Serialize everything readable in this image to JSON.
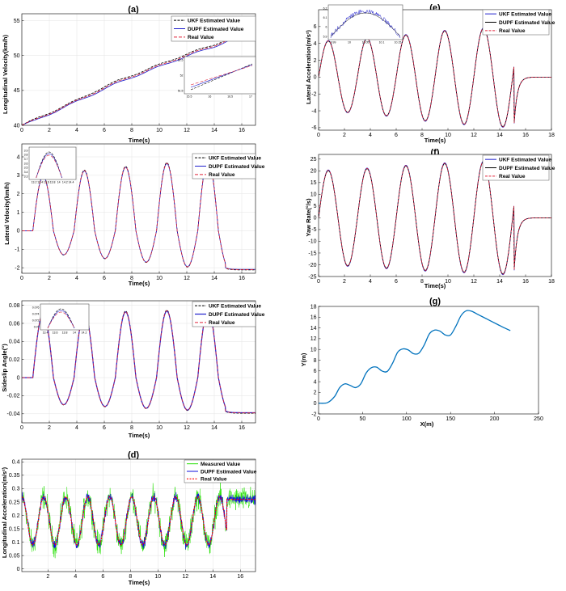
{
  "chart_data": [
    {
      "id": "a",
      "panel_label": "(a)",
      "type": "line",
      "xlabel": "Time(s)",
      "ylabel": "Longitudinal Velocity(km/h)",
      "xlim": [
        0,
        17
      ],
      "ylim": [
        40,
        56
      ],
      "xticks": [
        0,
        2,
        4,
        6,
        8,
        10,
        12,
        14,
        16
      ],
      "yticks": [
        40,
        45,
        50,
        55
      ],
      "legend_position": "top-right",
      "grid": true,
      "series": [
        {
          "name": "UKF Estimated Value",
          "color": "#000000",
          "dash": "3,1.5",
          "width": 0.8,
          "x": [
            0,
            1,
            2,
            3,
            4,
            5,
            6,
            7,
            8,
            9,
            10,
            11,
            12,
            13,
            14,
            15,
            16,
            17
          ],
          "y": [
            40.0,
            40.9,
            41.8,
            42.7,
            43.6,
            44.6,
            45.5,
            46.4,
            47.2,
            47.9,
            48.7,
            49.5,
            50.2,
            50.9,
            51.6,
            52.4,
            53.2,
            54.0
          ]
        },
        {
          "name": "DUPF Estimated Value",
          "color": "#1f1fcc",
          "dash": "",
          "width": 0.8,
          "x": [
            0,
            1,
            2,
            3,
            4,
            5,
            6,
            7,
            8,
            9,
            10,
            11,
            12,
            13,
            14,
            15,
            16,
            17
          ],
          "y": [
            40.0,
            40.7,
            41.6,
            42.5,
            43.4,
            44.3,
            45.2,
            46.1,
            46.9,
            47.6,
            48.4,
            49.2,
            49.9,
            50.6,
            51.3,
            52.1,
            52.9,
            53.7
          ]
        },
        {
          "name": "Real Value",
          "color": "#e0243a",
          "dash": "4,2",
          "width": 0.8,
          "x": [
            0,
            1,
            2,
            3,
            4,
            5,
            6,
            7,
            8,
            9,
            10,
            11,
            12,
            13,
            14,
            15,
            16,
            17
          ],
          "y": [
            40.0,
            40.8,
            41.7,
            42.6,
            43.5,
            44.45,
            45.35,
            46.25,
            47.05,
            47.75,
            48.55,
            49.35,
            50.05,
            50.75,
            51.45,
            52.25,
            53.05,
            53.85
          ]
        }
      ],
      "inset": {
        "xticks": [
          "15.5",
          "16",
          "16.5",
          "17"
        ],
        "yticks": [
          "52.5",
          "52",
          "51.5"
        ]
      }
    },
    {
      "id": "b",
      "panel_label": "(b)",
      "type": "line",
      "xlabel": "Time(s)",
      "ylabel": "Lateral Velocity(km/h)",
      "xlim": [
        0,
        17
      ],
      "ylim": [
        -2.3,
        4.7
      ],
      "xticks": [
        0,
        2,
        4,
        6,
        8,
        10,
        12,
        14,
        16
      ],
      "yticks": [
        -2,
        -1,
        0,
        1,
        2,
        3,
        4
      ],
      "legend_position": "top-right",
      "grid": true,
      "signal": {
        "kind": "sine",
        "t_start": 0.8,
        "t_end": 14.8,
        "period": 3.0,
        "peaks": [
          2.95,
          3.25,
          3.45,
          3.65,
          3.85
        ],
        "troughs": [
          -1.3,
          -1.5,
          -1.7,
          -1.95,
          -2.0
        ],
        "final_value": -2.1
      },
      "series": [
        {
          "name": "UKF Estimated Value",
          "color": "#000000",
          "dash": "3,1.5",
          "width": 0.8
        },
        {
          "name": "DUPF Estimated Value",
          "color": "#1f1fcc",
          "dash": "",
          "width": 0.8
        },
        {
          "name": "Real Value",
          "color": "#e0243a",
          "dash": "4,2",
          "width": 0.8
        }
      ],
      "inset": {
        "xticks": [
          "13.2",
          "13.4",
          "13.6",
          "13.8",
          "14",
          "14.2",
          "14.4"
        ],
        "yticks": [
          "3.9",
          "3.8",
          "3.7",
          "3.6",
          "3.5",
          "3.4",
          "3.3"
        ]
      }
    },
    {
      "id": "c",
      "panel_label": "(c)",
      "type": "line",
      "xlabel": "Time(s)",
      "ylabel": "Sideslip Angle(°)",
      "xlim": [
        0,
        17
      ],
      "ylim": [
        -0.05,
        0.085
      ],
      "xticks": [
        0,
        2,
        4,
        6,
        8,
        10,
        12,
        14,
        16
      ],
      "yticks": [
        -0.04,
        -0.02,
        0,
        0.02,
        0.04,
        0.06,
        0.08
      ],
      "legend_position": "top-right",
      "grid": true,
      "signal": {
        "kind": "sine",
        "t_start": 0.8,
        "t_end": 14.8,
        "period": 3.0,
        "peaks": [
          0.071,
          0.072,
          0.073,
          0.074,
          0.075
        ],
        "troughs": [
          -0.03,
          -0.032,
          -0.034,
          -0.036,
          -0.037
        ],
        "final_value": -0.039
      },
      "series": [
        {
          "name": "UKF Estimated Value",
          "color": "#000000",
          "dash": "3,1.5",
          "width": 0.8
        },
        {
          "name": "DUPF Estimated Value",
          "color": "#1f1fcc",
          "dash": "",
          "width": 1.2
        },
        {
          "name": "Real Value",
          "color": "#e0243a",
          "dash": "4,2",
          "width": 0.8
        }
      ],
      "inset": {
        "xticks": [
          "13.4",
          "13.6",
          "13.8",
          "14",
          "14.2"
        ],
        "yticks": [
          "0.076",
          "0.074",
          "0.072",
          "0.07"
        ]
      }
    },
    {
      "id": "d",
      "panel_label": "(d)",
      "type": "line",
      "xlabel": "Time(s)",
      "ylabel": "Longitudinal Acceleration(m/s²)",
      "xlim": [
        0.1,
        17.1
      ],
      "ylim": [
        -0.01,
        0.41
      ],
      "xticks": [
        2,
        4,
        6,
        8,
        10,
        12,
        14,
        16
      ],
      "yticks": [
        0,
        0.05,
        0.1,
        0.15,
        0.2,
        0.25,
        0.3,
        0.35,
        0.4
      ],
      "legend_position": "top-right",
      "grid": true,
      "signal": {
        "kind": "sine",
        "t_start": 0.1,
        "t_end": 15.0,
        "period": 1.6,
        "center": 0.18,
        "amplitude": 0.09,
        "final_value": 0.26,
        "measured_noise": 0.065,
        "estimate_noise": 0.025
      },
      "series": [
        {
          "name": "Measured Value",
          "color": "#22e000",
          "dash": "",
          "width": 0.5
        },
        {
          "name": "DUPF Estimated Value",
          "color": "#1010dd",
          "dash": "",
          "width": 0.7
        },
        {
          "name": "Real Value",
          "color": "#ff0000",
          "dash": "2,1.5",
          "width": 1.2
        }
      ]
    },
    {
      "id": "e",
      "panel_label": "(e)",
      "type": "line",
      "xlabel": "Time(s)",
      "ylabel": "Lateral Acceleration(m/s²)",
      "xlim": [
        0,
        18
      ],
      "ylim": [
        -6.3,
        8
      ],
      "xticks": [
        0,
        2,
        4,
        6,
        8,
        10,
        12,
        14,
        16,
        18
      ],
      "yticks": [
        -6,
        -4,
        -2,
        0,
        2,
        4,
        6
      ],
      "legend_position": "top-right",
      "grid": false,
      "signal": {
        "kind": "sine",
        "t_start": 0.0,
        "t_end": 15.1,
        "period": 3.0,
        "peaks": [
          4.3,
          4.6,
          5.0,
          5.5,
          5.8
        ],
        "troughs": [
          -4.2,
          -4.6,
          -5.2,
          -5.6,
          -5.9
        ],
        "final_value": 0.0
      },
      "series": [
        {
          "name": "UKF Estimated Value",
          "color": "#1f1fcc",
          "dash": "",
          "width": 0.8
        },
        {
          "name": "DUPF Estimated Value",
          "color": "#000000",
          "dash": "",
          "width": 0.8
        },
        {
          "name": "Real Value",
          "color": "#e0243a",
          "dash": "3,1.5",
          "width": 0.8
        }
      ],
      "inset": {
        "xticks": [
          "9.99",
          "10",
          "10.05",
          "10.1",
          "10.15"
        ],
        "yticks": [
          "6.2",
          "6.1",
          "6",
          "5.9"
        ]
      }
    },
    {
      "id": "f",
      "panel_label": "(f)",
      "type": "line",
      "xlabel": "Time(s)",
      "ylabel": "Yaw Rate(°/s)",
      "xlim": [
        0,
        18
      ],
      "ylim": [
        -25,
        27
      ],
      "xticks": [
        0,
        2,
        4,
        6,
        8,
        10,
        12,
        14,
        16,
        18
      ],
      "yticks": [
        -25,
        -20,
        -15,
        -10,
        -5,
        0,
        5,
        10,
        15,
        20,
        25
      ],
      "legend_position": "top-right",
      "grid": false,
      "signal": {
        "kind": "sine",
        "t_start": 0.0,
        "t_end": 15.1,
        "period": 3.0,
        "peaks": [
          20.2,
          21.0,
          22.2,
          23.2,
          24.0
        ],
        "troughs": [
          -20.5,
          -21.5,
          -22.5,
          -23.2,
          -24.0
        ],
        "final_value": 0.0
      },
      "series": [
        {
          "name": "UKF Estimated Value",
          "color": "#1f1fcc",
          "dash": "",
          "width": 0.8
        },
        {
          "name": "DUPF Estimated Value",
          "color": "#000000",
          "dash": "",
          "width": 0.8
        },
        {
          "name": "Real Value",
          "color": "#e0243a",
          "dash": "3,1.5",
          "width": 0.8
        }
      ]
    },
    {
      "id": "g",
      "panel_label": "(g)",
      "type": "line",
      "xlabel": "X(m)",
      "ylabel": "Y(m)",
      "xlim": [
        0,
        250
      ],
      "ylim": [
        -2,
        18
      ],
      "xticks": [
        0,
        50,
        100,
        150,
        200,
        250
      ],
      "yticks": [
        -2,
        0,
        2,
        4,
        6,
        8,
        10,
        12,
        14,
        16,
        18
      ],
      "grid": false,
      "series": [
        {
          "color": "#0072bd",
          "dash": "",
          "width": 1.3,
          "x": [
            0,
            10,
            18,
            24,
            30,
            36,
            42,
            48,
            54,
            60,
            66,
            72,
            78,
            84,
            90,
            96,
            102,
            108,
            114,
            120,
            126,
            132,
            138,
            144,
            150,
            156,
            162,
            168,
            174,
            180,
            186,
            192,
            198,
            204,
            210,
            218
          ],
          "y": [
            0,
            0.1,
            1.2,
            2.9,
            3.6,
            3.3,
            2.9,
            3.6,
            5.6,
            6.6,
            6.7,
            6.0,
            5.9,
            7.4,
            9.5,
            10.1,
            9.9,
            9.2,
            9.3,
            10.8,
            12.9,
            13.6,
            13.4,
            12.7,
            12.7,
            14.3,
            16.3,
            17.2,
            17.1,
            16.6,
            16.1,
            15.6,
            15.1,
            14.6,
            14.1,
            13.5
          ]
        }
      ]
    }
  ]
}
